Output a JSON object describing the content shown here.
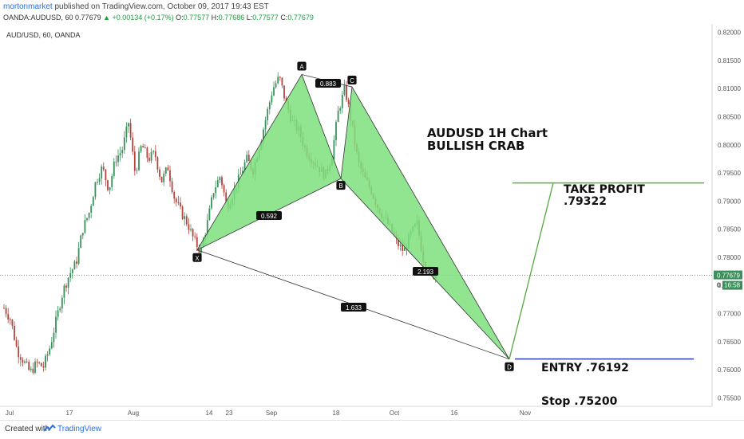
{
  "header": {
    "author": "mortonmarket",
    "published": "published on TradingView.com, October 09, 2017 19:43 EST",
    "symbol": "OANDA:AUDUSD, 60",
    "last": "0.77679",
    "change": "▲ +0.00134 (+0.17%)",
    "o_label": "O:",
    "o": "0.77577",
    "h_label": "H:",
    "h": "0.77686",
    "l_label": "L:",
    "l": "0.77577",
    "c_label": "C:",
    "c": "0.77679"
  },
  "footer": {
    "created_with": "Created with",
    "brand": "TradingView"
  },
  "chart_data": {
    "type": "candlestick",
    "title": "AUD/USD, 60, OANDA",
    "x_ticks": [
      "Jul",
      "17",
      "Aug",
      "14",
      "23",
      "Sep",
      "18",
      "Oct",
      "16",
      "Nov"
    ],
    "y_ticks": [
      "0.82000",
      "0.81500",
      "0.81000",
      "0.80500",
      "0.80000",
      "0.79500",
      "0.79000",
      "0.78500",
      "0.78000",
      "0.77500",
      "0.77000",
      "0.76500",
      "0.76000",
      "0.75500"
    ],
    "ylim": [
      0.7535,
      0.8215
    ],
    "price_line": 0.77679,
    "price_label": "0.77679",
    "countdown_prefix": "0",
    "countdown": "16:58",
    "price_path": [
      [
        "Jul",
        0.771
      ],
      [
        "Jul",
        0.769
      ],
      [
        "Jul",
        0.7635
      ],
      [
        "Jul",
        0.7615
      ],
      [
        "Jul",
        0.7595
      ],
      [
        "Jul",
        0.7612
      ],
      [
        "Jul",
        0.7605
      ],
      [
        "Jul",
        0.764
      ],
      [
        "Jul",
        0.769
      ],
      [
        "Jul",
        0.774
      ],
      [
        "Jul",
        0.777
      ],
      [
        "17",
        0.779
      ],
      [
        "17",
        0.785
      ],
      [
        "17",
        0.788
      ],
      [
        "17",
        0.7935
      ],
      [
        "17",
        0.796
      ],
      [
        "17",
        0.792
      ],
      [
        "17",
        0.7975
      ],
      [
        "17",
        0.799
      ],
      [
        "17",
        0.804
      ],
      [
        "17",
        0.795
      ],
      [
        "17",
        0.8
      ],
      [
        "Aug",
        0.7975
      ],
      [
        "Aug",
        0.7985
      ],
      [
        "Aug",
        0.7935
      ],
      [
        "Aug",
        0.796
      ],
      [
        "Aug",
        0.7905
      ],
      [
        "Aug",
        0.788
      ],
      [
        "Aug",
        0.786
      ],
      [
        "14",
        0.783
      ],
      [
        "14",
        0.781
      ],
      [
        "14",
        0.786
      ],
      [
        "14",
        0.792
      ],
      [
        "14",
        0.7945
      ],
      [
        "23",
        0.789
      ],
      [
        "23",
        0.7915
      ],
      [
        "23",
        0.7945
      ],
      [
        "23",
        0.7975
      ],
      [
        "23",
        0.7955
      ],
      [
        "23",
        0.8
      ],
      [
        "Sep",
        0.805
      ],
      [
        "Sep",
        0.81
      ],
      [
        "Sep",
        0.812
      ],
      [
        "Sep",
        0.8075
      ],
      [
        "Sep",
        0.804
      ],
      [
        "Sep",
        0.8025
      ],
      [
        "Sep",
        0.799
      ],
      [
        "Sep",
        0.7975
      ],
      [
        "Sep",
        0.796
      ],
      [
        "18",
        0.7945
      ],
      [
        "18",
        0.798
      ],
      [
        "18",
        0.806
      ],
      [
        "18",
        0.81
      ],
      [
        "18",
        0.804
      ],
      [
        "18",
        0.797
      ],
      [
        "18",
        0.794
      ],
      [
        "18",
        0.792
      ],
      [
        "18",
        0.789
      ],
      [
        "18",
        0.787
      ],
      [
        "18",
        0.785
      ],
      [
        "Oct",
        0.7825
      ],
      [
        "Oct",
        0.781
      ],
      [
        "Oct",
        0.784
      ],
      [
        "Oct",
        0.786
      ],
      [
        "Oct",
        0.7795
      ],
      [
        "Oct",
        0.777
      ],
      [
        "Oct",
        0.7768
      ]
    ],
    "pattern": {
      "name": "Bullish Crab",
      "points": [
        {
          "label": "X",
          "x": "14",
          "y": 0.7813
        },
        {
          "label": "A",
          "x": "Sep",
          "y": 0.8125
        },
        {
          "label": "B",
          "x": "18",
          "y": 0.794
        },
        {
          "label": "C",
          "x": "18",
          "y": 0.8103
        },
        {
          "label": "D",
          "x": "Nov",
          "y": 0.7619
        }
      ],
      "ratios": {
        "ab": "0.592",
        "bc": "0.883",
        "cd": "2.193",
        "xd": "1.633"
      }
    },
    "annotations": {
      "chart_title": "AUDUSD 1H Chart",
      "pattern_name": "BULLISH CRAB",
      "take_profit_label": "TAKE PROFIT",
      "take_profit_value": ".79322",
      "take_profit": 0.79322,
      "entry_label": "ENTRY .76192",
      "entry": 0.76192,
      "stop_label": "Stop .75200"
    }
  }
}
